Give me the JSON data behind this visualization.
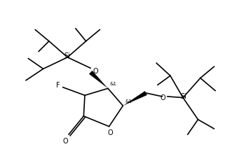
{
  "bg_color": "#ffffff",
  "line_color": "#000000",
  "line_width": 1.2,
  "font_size": 6.5,
  "figsize": [
    3.31,
    2.33
  ],
  "dpi": 100,
  "xlim": [
    0,
    10.0
  ],
  "ylim": [
    0,
    7.0
  ]
}
